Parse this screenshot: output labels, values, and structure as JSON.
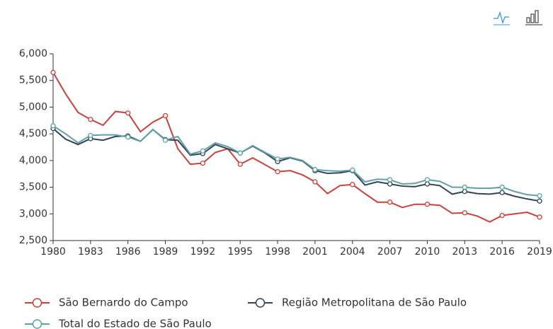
{
  "chart_data": {
    "type": "line",
    "x": [
      1980,
      1981,
      1982,
      1983,
      1984,
      1985,
      1986,
      1987,
      1988,
      1989,
      1990,
      1991,
      1992,
      1993,
      1994,
      1995,
      1996,
      1997,
      1998,
      1999,
      2000,
      2001,
      2002,
      2003,
      2004,
      2005,
      2006,
      2007,
      2008,
      2009,
      2010,
      2011,
      2012,
      2013,
      2014,
      2015,
      2016,
      2017,
      2018,
      2019
    ],
    "series": [
      {
        "name": "São Bernardo do Campo",
        "color": "#c9413c",
        "values": [
          5650,
          5250,
          4900,
          4770,
          4660,
          4920,
          4890,
          4540,
          4720,
          4840,
          4220,
          3930,
          3950,
          4150,
          4220,
          3930,
          4050,
          3920,
          3790,
          3810,
          3730,
          3600,
          3380,
          3530,
          3550,
          3380,
          3220,
          3220,
          3120,
          3180,
          3180,
          3160,
          3010,
          3020,
          2960,
          2850,
          2970,
          3000,
          3030,
          2940
        ]
      },
      {
        "name": "Região Metropolitana de São Paulo",
        "color": "#2f4554",
        "values": [
          4600,
          4400,
          4300,
          4410,
          4380,
          4450,
          4460,
          4360,
          4580,
          4390,
          4380,
          4100,
          4130,
          4300,
          4220,
          4140,
          4270,
          4140,
          3980,
          4050,
          3990,
          3810,
          3760,
          3770,
          3810,
          3540,
          3600,
          3560,
          3520,
          3510,
          3560,
          3530,
          3370,
          3420,
          3380,
          3370,
          3400,
          3330,
          3280,
          3240
        ]
      },
      {
        "name": "Total do Estado de São Paulo",
        "color": "#61a0a8",
        "values": [
          4650,
          4500,
          4330,
          4470,
          4480,
          4480,
          4440,
          4360,
          4580,
          4380,
          4450,
          4120,
          4180,
          4330,
          4260,
          4140,
          4280,
          4150,
          4030,
          4060,
          4000,
          3830,
          3810,
          3800,
          3820,
          3600,
          3650,
          3640,
          3560,
          3570,
          3640,
          3610,
          3500,
          3500,
          3480,
          3480,
          3500,
          3420,
          3360,
          3340
        ]
      }
    ],
    "xlim": [
      1980,
      2019
    ],
    "xticks": [
      1980,
      1983,
      1986,
      1989,
      1992,
      1995,
      1998,
      2001,
      2004,
      2007,
      2010,
      2013,
      2016,
      2019
    ],
    "ylim": [
      2500,
      6000
    ],
    "yticks": [
      {
        "value": 2500,
        "label": "2,500"
      },
      {
        "value": 3000,
        "label": "3,000"
      },
      {
        "value": 3500,
        "label": "3,500"
      },
      {
        "value": 4000,
        "label": "4,000"
      },
      {
        "value": 4500,
        "label": "4,500"
      },
      {
        "value": 5000,
        "label": "5,000"
      },
      {
        "value": 5500,
        "label": "5,500"
      },
      {
        "value": 6000,
        "label": "6,000"
      }
    ]
  }
}
